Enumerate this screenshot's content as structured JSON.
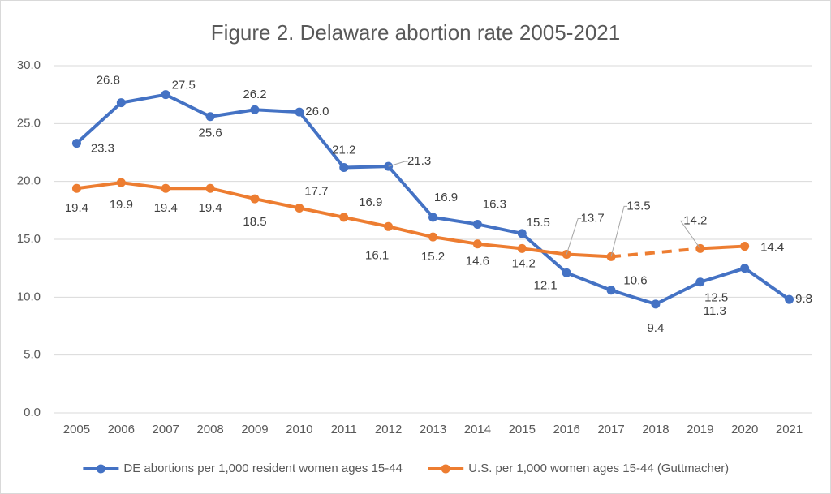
{
  "chart_data": {
    "type": "line",
    "title": "Figure 2. Delaware abortion rate 2005-2021",
    "categories": [
      "2005",
      "2006",
      "2007",
      "2008",
      "2009",
      "2010",
      "2011",
      "2012",
      "2013",
      "2014",
      "2015",
      "2016",
      "2017",
      "2018",
      "2019",
      "2020",
      "2021"
    ],
    "series": [
      {
        "name": "DE abortions per 1,000 resident women ages 15-44",
        "color": "#4472c4",
        "values": [
          23.3,
          26.8,
          27.5,
          25.6,
          26.2,
          26.0,
          21.2,
          21.3,
          16.9,
          16.3,
          15.5,
          12.1,
          10.6,
          9.4,
          11.3,
          12.5,
          9.8
        ],
        "value_labels": [
          "23.3",
          "26.8",
          "27.5",
          "25.6",
          "26.2",
          "26.0",
          "21.2",
          "21.3",
          "16.9",
          "16.3",
          "15.5",
          "12.1",
          "10.6",
          "9.4",
          "11.3",
          "12.5",
          "9.8"
        ]
      },
      {
        "name": "U.S. per 1,000 women ages 15-44 (Guttmacher)",
        "color": "#ed7d31",
        "values": [
          19.4,
          19.9,
          19.4,
          19.4,
          18.5,
          17.7,
          16.9,
          16.1,
          15.2,
          14.6,
          14.2,
          13.7,
          13.5,
          null,
          14.2,
          14.4,
          null
        ],
        "gap_style": "dashed"
      }
    ],
    "ylim": [
      0,
      30
    ],
    "yticks": [
      {
        "value": 0,
        "label": "0.0"
      },
      {
        "value": 5,
        "label": "5.0"
      },
      {
        "value": 10,
        "label": "10.0"
      },
      {
        "value": 15,
        "label": "15.0"
      },
      {
        "value": 20,
        "label": "20.0"
      },
      {
        "value": 25,
        "label": "25.0"
      },
      {
        "value": 30,
        "label": "30.0"
      }
    ],
    "grid": true,
    "legend": "bottom"
  }
}
